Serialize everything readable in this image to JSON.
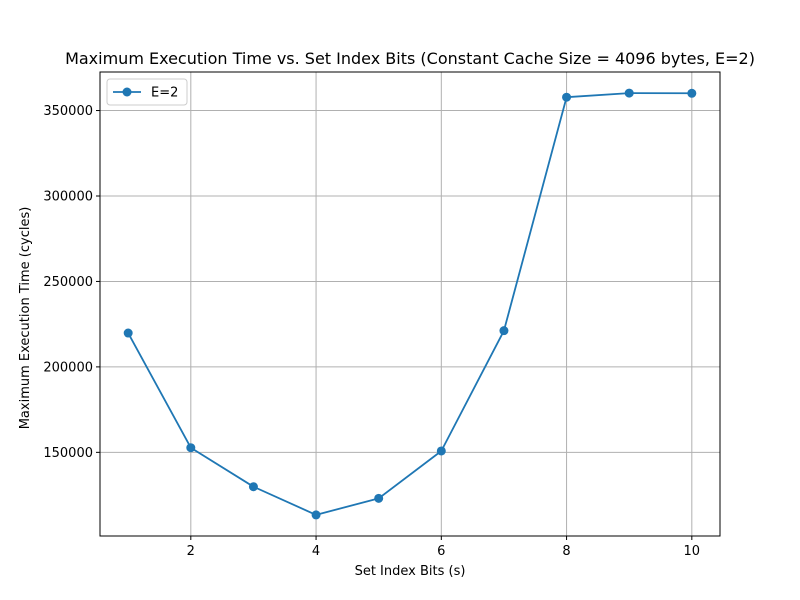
{
  "chart_data": {
    "type": "line",
    "title": "Maximum Execution Time vs. Set Index Bits (Constant Cache Size = 4096 bytes, E=2)",
    "xlabel": "Set Index Bits (s)",
    "ylabel": "Maximum Execution Time (cycles)",
    "x": [
      1,
      2,
      3,
      4,
      5,
      6,
      7,
      8,
      9,
      10
    ],
    "series": [
      {
        "name": "E=2",
        "color": "#1f77b4",
        "marker": "circle",
        "values": [
          219800,
          152700,
          129900,
          113400,
          123100,
          150800,
          221200,
          357800,
          360200,
          360100
        ]
      }
    ],
    "xlim": [
      0.55,
      10.45
    ],
    "ylim": [
      101050,
      372550
    ],
    "xticks": [
      2,
      4,
      6,
      8,
      10
    ],
    "yticks": [
      150000,
      200000,
      250000,
      300000,
      350000
    ],
    "grid": true,
    "legend_position": "top-left"
  }
}
